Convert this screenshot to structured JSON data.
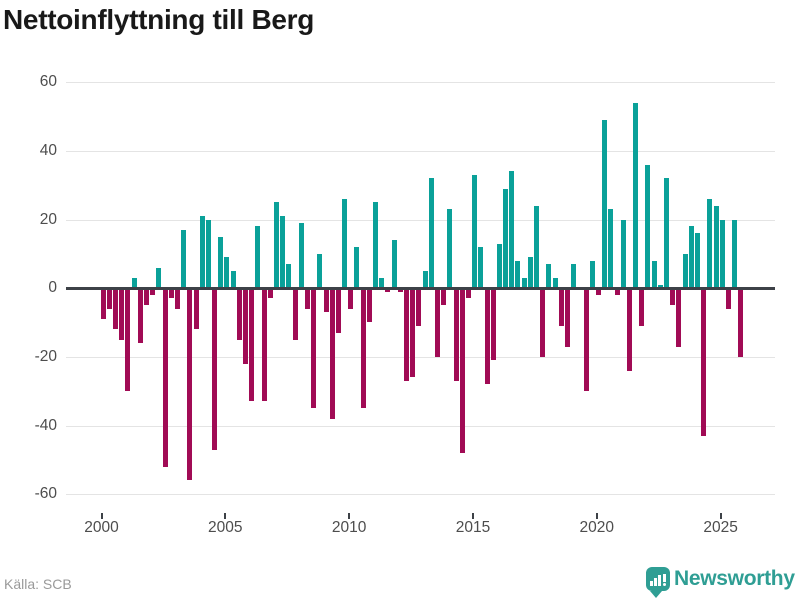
{
  "title": "Nettoinflyttning till Berg",
  "source": "Källa: SCB",
  "logo": {
    "text": "Newsworthy"
  },
  "colors": {
    "positive": "#0aa199",
    "negative": "#a10b55",
    "axis": "#3d4147",
    "grid": "#e4e4e4",
    "title": "#191919",
    "tick_label": "#4d4d4d",
    "source_text": "#9a9a9a",
    "logo": "#2f9e94"
  },
  "chart_data": {
    "type": "bar",
    "title": "Nettoinflyttning till Berg",
    "unit": "persons per quarter",
    "ylim": [
      -60,
      60
    ],
    "ytick_labels": [
      "60",
      "40",
      "20",
      "0",
      "-20",
      "-40",
      "-60"
    ],
    "xtick_labels": [
      "2000",
      "2005",
      "2010",
      "2015",
      "2020",
      "2025"
    ],
    "grid": true,
    "legend": "none",
    "values_by_year": [
      {
        "year": 2000,
        "quarters": [
          -9,
          -6,
          -12,
          -15
        ]
      },
      {
        "year": 2001,
        "quarters": [
          -30,
          3,
          -16,
          -5
        ]
      },
      {
        "year": 2002,
        "quarters": [
          -2,
          6,
          -52,
          -3
        ]
      },
      {
        "year": 2003,
        "quarters": [
          -6,
          17,
          -56,
          -12
        ]
      },
      {
        "year": 2004,
        "quarters": [
          21,
          20,
          -47,
          15
        ]
      },
      {
        "year": 2005,
        "quarters": [
          9,
          5,
          -15,
          -22
        ]
      },
      {
        "year": 2006,
        "quarters": [
          -33,
          18,
          -33,
          -3
        ]
      },
      {
        "year": 2007,
        "quarters": [
          25,
          21,
          7,
          -15
        ]
      },
      {
        "year": 2008,
        "quarters": [
          19,
          -6,
          -35,
          10
        ]
      },
      {
        "year": 2009,
        "quarters": [
          -7,
          -38,
          -13,
          26
        ]
      },
      {
        "year": 2010,
        "quarters": [
          -6,
          12,
          -35,
          -10
        ]
      },
      {
        "year": 2011,
        "quarters": [
          25,
          3,
          -1,
          14
        ]
      },
      {
        "year": 2012,
        "quarters": [
          -1,
          -27,
          -26,
          -11
        ]
      },
      {
        "year": 2013,
        "quarters": [
          5,
          32,
          -20,
          -5
        ]
      },
      {
        "year": 2014,
        "quarters": [
          23,
          -27,
          -48,
          -3
        ]
      },
      {
        "year": 2015,
        "quarters": [
          33,
          12,
          -28,
          -21
        ]
      },
      {
        "year": 2016,
        "quarters": [
          13,
          29,
          34,
          8
        ]
      },
      {
        "year": 2017,
        "quarters": [
          3,
          9,
          24,
          -20
        ]
      },
      {
        "year": 2018,
        "quarters": [
          7,
          3,
          -11,
          -17
        ]
      },
      {
        "year": 2019,
        "quarters": [
          7,
          0,
          -30,
          8
        ]
      },
      {
        "year": 2020,
        "quarters": [
          -2,
          49,
          23,
          -2
        ]
      },
      {
        "year": 2021,
        "quarters": [
          20,
          -24,
          54,
          -11
        ]
      },
      {
        "year": 2022,
        "quarters": [
          36,
          8,
          1,
          32
        ]
      },
      {
        "year": 2023,
        "quarters": [
          -5,
          -17,
          10,
          18
        ]
      },
      {
        "year": 2024,
        "quarters": [
          16,
          -43,
          26,
          24
        ]
      },
      {
        "year": 2025,
        "quarters": [
          20,
          -6,
          20,
          -20
        ]
      }
    ]
  }
}
